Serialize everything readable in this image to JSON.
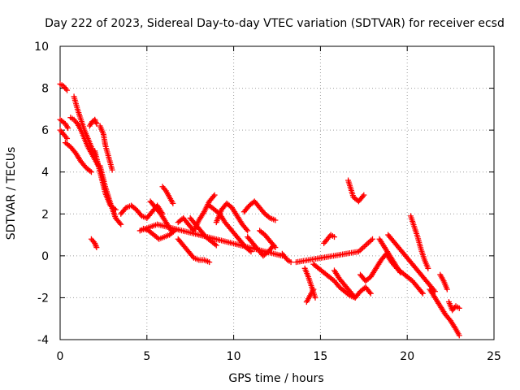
{
  "chart_data": {
    "type": "scatter",
    "title": "Day 222 of 2023, Sidereal Day-to-day VTEC variation (SDTVAR) for receiver ecsd",
    "xlabel": "GPS time / hours",
    "ylabel": "SDTVAR / TECUs",
    "xlim": [
      0,
      25
    ],
    "ylim": [
      -4,
      10
    ],
    "xticks": [
      0,
      5,
      10,
      15,
      20,
      25
    ],
    "yticks": [
      -4,
      -2,
      0,
      2,
      4,
      6,
      8,
      10
    ],
    "grid": true,
    "marker": "+",
    "color": "#ff0000",
    "series": [
      {
        "name": "ecsd",
        "tracks": [
          {
            "x": [
              0.0,
              0.2,
              0.4
            ],
            "y": [
              8.2,
              8.1,
              7.9
            ]
          },
          {
            "x": [
              0.0,
              0.15,
              0.3,
              0.45
            ],
            "y": [
              6.5,
              6.4,
              6.3,
              6.1
            ]
          },
          {
            "x": [
              0.0,
              0.2,
              0.4
            ],
            "y": [
              6.0,
              5.8,
              5.6
            ]
          },
          {
            "x": [
              0.3,
              0.6,
              0.9,
              1.2,
              1.5,
              1.8
            ],
            "y": [
              5.4,
              5.2,
              4.9,
              4.5,
              4.2,
              4.0
            ]
          },
          {
            "x": [
              0.6,
              0.8,
              1.0,
              1.2,
              1.4,
              1.6,
              1.8,
              2.0,
              2.2
            ],
            "y": [
              6.6,
              6.5,
              6.3,
              6.0,
              5.6,
              5.2,
              4.9,
              4.6,
              4.3
            ]
          },
          {
            "x": [
              0.8,
              1.0,
              1.2,
              1.4,
              1.6,
              1.8,
              2.0
            ],
            "y": [
              7.6,
              7.0,
              6.5,
              6.0,
              5.6,
              5.2,
              4.8
            ]
          },
          {
            "x": [
              1.7,
              1.85,
              2.0,
              2.1
            ],
            "y": [
              6.2,
              6.4,
              6.5,
              6.3
            ]
          },
          {
            "x": [
              2.3,
              2.5,
              2.6,
              2.8,
              3.0
            ],
            "y": [
              6.2,
              5.8,
              5.3,
              4.7,
              4.1
            ]
          },
          {
            "x": [
              2.0,
              2.3,
              2.6,
              2.9,
              3.2
            ],
            "y": [
              5.0,
              4.0,
              3.0,
              2.4,
              2.2
            ]
          },
          {
            "x": [
              2.3,
              2.6,
              2.9,
              3.2,
              3.5
            ],
            "y": [
              4.3,
              3.3,
              2.5,
              1.8,
              1.5
            ]
          },
          {
            "x": [
              1.8,
              2.0,
              2.1
            ],
            "y": [
              0.8,
              0.6,
              0.4
            ]
          },
          {
            "x": [
              3.5,
              3.8,
              4.1,
              4.4,
              4.7,
              5.0,
              5.3,
              5.6,
              5.9
            ],
            "y": [
              2.0,
              2.3,
              2.4,
              2.2,
              1.9,
              1.8,
              2.1,
              2.4,
              2.0
            ]
          },
          {
            "x": [
              5.2,
              5.5,
              5.8,
              6.1,
              6.4
            ],
            "y": [
              2.6,
              2.3,
              2.0,
              1.6,
              1.2
            ]
          },
          {
            "x": [
              4.8,
              5.1,
              5.4,
              5.7,
              6.0,
              6.3,
              6.6
            ],
            "y": [
              1.3,
              1.2,
              1.0,
              0.8,
              0.9,
              1.0,
              1.2
            ]
          },
          {
            "x": [
              5.9,
              6.1,
              6.3,
              6.5
            ],
            "y": [
              3.3,
              3.1,
              2.8,
              2.5
            ]
          },
          {
            "x": [
              6.8,
              7.1,
              7.4,
              7.7,
              8.0,
              8.3,
              8.6,
              8.9
            ],
            "y": [
              1.6,
              1.8,
              1.5,
              1.2,
              1.7,
              2.1,
              2.6,
              2.9
            ]
          },
          {
            "x": [
              6.8,
              7.1,
              7.4,
              7.7,
              8.0,
              8.3,
              8.6
            ],
            "y": [
              0.8,
              0.5,
              0.2,
              -0.1,
              -0.2,
              -0.2,
              -0.3
            ]
          },
          {
            "x": [
              7.5,
              7.8,
              8.1,
              8.4,
              8.7,
              9.0
            ],
            "y": [
              1.8,
              1.5,
              1.2,
              0.9,
              0.7,
              0.5
            ]
          },
          {
            "x": [
              8.6,
              8.9,
              9.2,
              9.5,
              9.8,
              10.1,
              10.4,
              10.7,
              11.0
            ],
            "y": [
              2.4,
              2.2,
              2.0,
              1.6,
              1.3,
              1.0,
              0.7,
              0.4,
              0.2
            ]
          },
          {
            "x": [
              9.0,
              9.3,
              9.6,
              9.9,
              10.2,
              10.5,
              10.8
            ],
            "y": [
              1.6,
              2.2,
              2.5,
              2.3,
              1.9,
              1.5,
              1.2
            ]
          },
          {
            "x": [
              10.6,
              10.9,
              11.2,
              11.5,
              11.8,
              12.1,
              12.4
            ],
            "y": [
              2.1,
              2.4,
              2.6,
              2.3,
              2.0,
              1.8,
              1.7
            ]
          },
          {
            "x": [
              10.8,
              11.1,
              11.4,
              11.7,
              12.0,
              12.3
            ],
            "y": [
              0.9,
              0.6,
              0.3,
              0.0,
              0.2,
              0.5
            ]
          },
          {
            "x": [
              11.5,
              11.8,
              12.1,
              12.4
            ],
            "y": [
              1.2,
              1.0,
              0.7,
              0.4
            ]
          },
          {
            "x": [
              12.8,
              13.1,
              13.3
            ],
            "y": [
              0.1,
              -0.2,
              -0.3
            ]
          },
          {
            "x": [
              14.1,
              14.3,
              14.5,
              14.7
            ],
            "y": [
              -0.6,
              -1.0,
              -1.5,
              -2.0
            ]
          },
          {
            "x": [
              14.2,
              14.4,
              14.6
            ],
            "y": [
              -2.2,
              -1.9,
              -1.6
            ]
          },
          {
            "x": [
              14.6,
              14.9,
              15.2,
              15.5,
              15.8,
              16.1,
              16.4,
              16.7,
              17.0
            ],
            "y": [
              -0.4,
              -0.6,
              -0.8,
              -1.0,
              -1.2,
              -1.5,
              -1.7,
              -1.9,
              -2.0
            ]
          },
          {
            "x": [
              15.2,
              15.4,
              15.6,
              15.8
            ],
            "y": [
              0.6,
              0.8,
              1.0,
              0.9
            ]
          },
          {
            "x": [
              15.8,
              16.1,
              16.4,
              16.7,
              17.0,
              17.3,
              17.6,
              17.9
            ],
            "y": [
              -0.7,
              -1.1,
              -1.4,
              -1.7,
              -2.0,
              -1.7,
              -1.5,
              -1.8
            ]
          },
          {
            "x": [
              16.6,
              16.9,
              17.2,
              17.5
            ],
            "y": [
              3.6,
              2.8,
              2.6,
              2.9
            ]
          },
          {
            "x": [
              17.3,
              17.6,
              17.9,
              18.2,
              18.5,
              18.8,
              19.1,
              19.4,
              19.7,
              20.0,
              20.3,
              20.6,
              20.9
            ],
            "y": [
              -0.9,
              -1.2,
              -1.0,
              -0.6,
              -0.2,
              0.1,
              -0.3,
              -0.6,
              -0.8,
              -1.0,
              -1.2,
              -1.5,
              -1.8
            ]
          },
          {
            "x": [
              18.4,
              18.7,
              19.0,
              19.3,
              19.6
            ],
            "y": [
              0.8,
              0.4,
              0.0,
              -0.4,
              -0.8
            ]
          },
          {
            "x": [
              18.9,
              19.2,
              19.5,
              19.8,
              20.1,
              20.4,
              20.7,
              21.0,
              21.3,
              21.6
            ],
            "y": [
              1.0,
              0.7,
              0.4,
              0.1,
              -0.2,
              -0.5,
              -0.8,
              -1.1,
              -1.4,
              -1.7
            ]
          },
          {
            "x": [
              20.2,
              20.4,
              20.6,
              20.8,
              21.0,
              21.2
            ],
            "y": [
              1.9,
              1.4,
              0.9,
              0.3,
              -0.2,
              -0.6
            ]
          },
          {
            "x": [
              21.3,
              21.6,
              21.9,
              22.2,
              22.5,
              22.8,
              23.0
            ],
            "y": [
              -1.6,
              -2.0,
              -2.4,
              -2.8,
              -3.1,
              -3.5,
              -3.8
            ]
          },
          {
            "x": [
              21.9,
              22.1,
              22.3
            ],
            "y": [
              -0.9,
              -1.2,
              -1.6
            ]
          },
          {
            "x": [
              22.4,
              22.6,
              22.8,
              23.0
            ],
            "y": [
              -2.2,
              -2.6,
              -2.4,
              -2.5
            ]
          },
          {
            "x": [
              13.6,
              17.2,
              18.0
            ],
            "y": [
              -0.3,
              0.2,
              0.8
            ]
          },
          {
            "x": [
              4.6,
              5.6,
              12.8
            ],
            "y": [
              1.2,
              1.5,
              0.0
            ]
          }
        ]
      }
    ]
  }
}
